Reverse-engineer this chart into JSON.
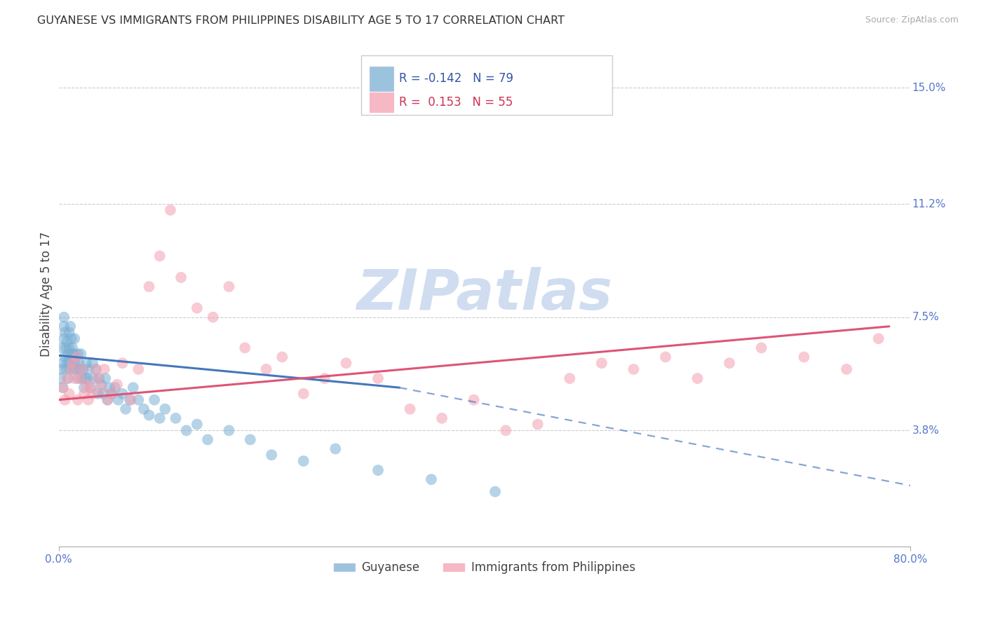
{
  "title": "GUYANESE VS IMMIGRANTS FROM PHILIPPINES DISABILITY AGE 5 TO 17 CORRELATION CHART",
  "source": "Source: ZipAtlas.com",
  "ylabel": "Disability Age 5 to 17",
  "ytick_labels": [
    "3.8%",
    "7.5%",
    "11.2%",
    "15.0%"
  ],
  "ytick_values": [
    0.038,
    0.075,
    0.112,
    0.15
  ],
  "xlim": [
    0.0,
    0.8
  ],
  "ylim": [
    0.0,
    0.165
  ],
  "blue_label": "Guyanese",
  "pink_label": "Immigrants from Philippines",
  "blue_R": "-0.142",
  "blue_N": "79",
  "pink_R": "0.153",
  "pink_N": "55",
  "blue_color": "#7BAFD4",
  "pink_color": "#F4A0B0",
  "blue_line_color": "#4477BB",
  "pink_line_color": "#DD5577",
  "watermark": "ZIPatlas",
  "watermark_color": "#C8D8EE",
  "background_color": "#FFFFFF",
  "blue_x": [
    0.002,
    0.003,
    0.003,
    0.004,
    0.004,
    0.005,
    0.005,
    0.005,
    0.006,
    0.006,
    0.007,
    0.007,
    0.008,
    0.008,
    0.009,
    0.009,
    0.01,
    0.01,
    0.01,
    0.011,
    0.011,
    0.012,
    0.012,
    0.013,
    0.013,
    0.014,
    0.014,
    0.015,
    0.015,
    0.016,
    0.017,
    0.018,
    0.018,
    0.019,
    0.02,
    0.021,
    0.022,
    0.023,
    0.024,
    0.025,
    0.026,
    0.027,
    0.028,
    0.03,
    0.032,
    0.033,
    0.035,
    0.037,
    0.038,
    0.04,
    0.042,
    0.044,
    0.046,
    0.048,
    0.05,
    0.053,
    0.056,
    0.06,
    0.063,
    0.067,
    0.07,
    0.075,
    0.08,
    0.085,
    0.09,
    0.095,
    0.1,
    0.11,
    0.12,
    0.13,
    0.14,
    0.16,
    0.18,
    0.2,
    0.23,
    0.26,
    0.3,
    0.35,
    0.41
  ],
  "blue_y": [
    0.055,
    0.058,
    0.065,
    0.052,
    0.06,
    0.068,
    0.072,
    0.075,
    0.062,
    0.07,
    0.058,
    0.065,
    0.06,
    0.067,
    0.063,
    0.055,
    0.07,
    0.065,
    0.06,
    0.058,
    0.072,
    0.068,
    0.063,
    0.06,
    0.065,
    0.058,
    0.063,
    0.068,
    0.06,
    0.062,
    0.058,
    0.063,
    0.055,
    0.06,
    0.058,
    0.063,
    0.055,
    0.058,
    0.052,
    0.055,
    0.06,
    0.055,
    0.058,
    0.052,
    0.06,
    0.055,
    0.058,
    0.05,
    0.055,
    0.053,
    0.05,
    0.055,
    0.048,
    0.052,
    0.05,
    0.052,
    0.048,
    0.05,
    0.045,
    0.048,
    0.052,
    0.048,
    0.045,
    0.043,
    0.048,
    0.042,
    0.045,
    0.042,
    0.038,
    0.04,
    0.035,
    0.038,
    0.035,
    0.03,
    0.028,
    0.032,
    0.025,
    0.022,
    0.018
  ],
  "pink_x": [
    0.004,
    0.006,
    0.008,
    0.01,
    0.012,
    0.013,
    0.015,
    0.017,
    0.018,
    0.02,
    0.022,
    0.024,
    0.026,
    0.028,
    0.03,
    0.032,
    0.035,
    0.037,
    0.04,
    0.043,
    0.046,
    0.05,
    0.055,
    0.06,
    0.068,
    0.075,
    0.085,
    0.095,
    0.105,
    0.115,
    0.13,
    0.145,
    0.16,
    0.175,
    0.195,
    0.21,
    0.23,
    0.25,
    0.27,
    0.3,
    0.33,
    0.36,
    0.39,
    0.42,
    0.45,
    0.48,
    0.51,
    0.54,
    0.57,
    0.6,
    0.63,
    0.66,
    0.7,
    0.74,
    0.77
  ],
  "pink_y": [
    0.052,
    0.048,
    0.055,
    0.05,
    0.058,
    0.06,
    0.055,
    0.062,
    0.048,
    0.055,
    0.058,
    0.05,
    0.053,
    0.048,
    0.052,
    0.05,
    0.058,
    0.055,
    0.052,
    0.058,
    0.048,
    0.05,
    0.053,
    0.06,
    0.048,
    0.058,
    0.085,
    0.095,
    0.11,
    0.088,
    0.078,
    0.075,
    0.085,
    0.065,
    0.058,
    0.062,
    0.05,
    0.055,
    0.06,
    0.055,
    0.045,
    0.042,
    0.048,
    0.038,
    0.04,
    0.055,
    0.06,
    0.058,
    0.062,
    0.055,
    0.06,
    0.065,
    0.062,
    0.058,
    0.068
  ],
  "blue_trend_x0": 0.0,
  "blue_trend_x_solid_end": 0.32,
  "blue_trend_x_dash_end": 0.8,
  "blue_trend_y_start": 0.0625,
  "blue_trend_y_solid_end": 0.052,
  "blue_trend_y_dash_end": 0.02,
  "pink_trend_x0": 0.0,
  "pink_trend_x_end": 0.78,
  "pink_trend_y_start": 0.048,
  "pink_trend_y_end": 0.072
}
